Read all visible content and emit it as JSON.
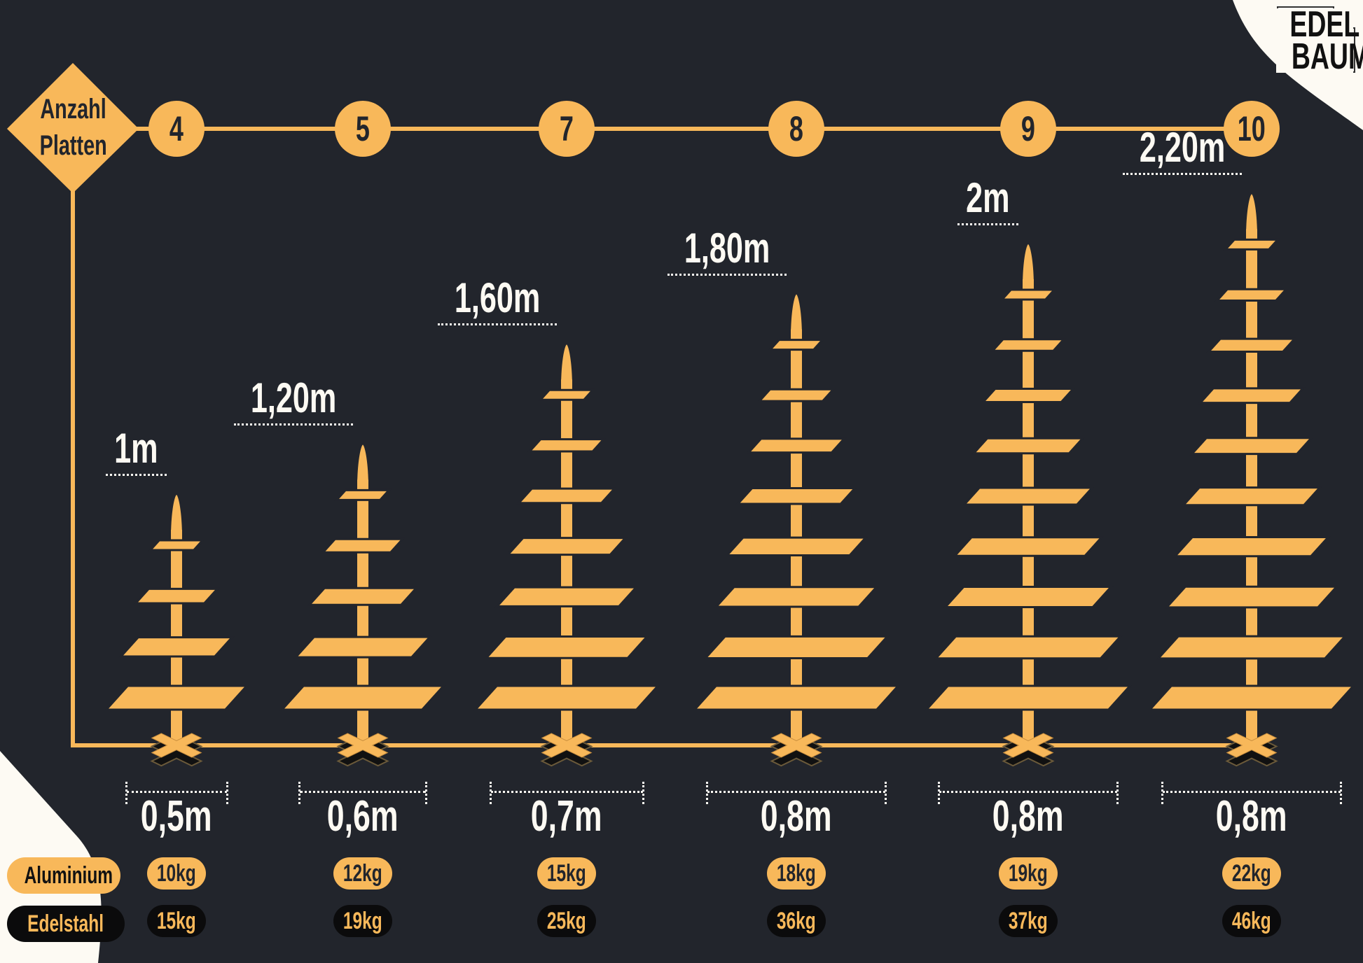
{
  "colors": {
    "background": "#22252c",
    "accent": "#f8b85a",
    "cream": "#fdfaf3",
    "dark_pill": "#0b0b0c"
  },
  "logo": {
    "line1": "EDEL",
    "line2": "BAUM"
  },
  "axis_label": {
    "line1": "Anzahl",
    "line2": "Platten"
  },
  "legend": {
    "aluminium": "Aluminium",
    "edelstahl": "Edelstahl"
  },
  "columns": [
    {
      "plates": "4",
      "height": "1m",
      "height_m": 1.0,
      "base": "0,5m",
      "base_m": 0.5,
      "aluminium": "10kg",
      "edelstahl": "15kg"
    },
    {
      "plates": "5",
      "height": "1,20m",
      "height_m": 1.2,
      "base": "0,6m",
      "base_m": 0.6,
      "aluminium": "12kg",
      "edelstahl": "19kg"
    },
    {
      "plates": "7",
      "height": "1,60m",
      "height_m": 1.6,
      "base": "0,7m",
      "base_m": 0.7,
      "aluminium": "15kg",
      "edelstahl": "25kg"
    },
    {
      "plates": "8",
      "height": "1,80m",
      "height_m": 1.8,
      "base": "0,8m",
      "base_m": 0.8,
      "aluminium": "18kg",
      "edelstahl": "36kg"
    },
    {
      "plates": "9",
      "height": "2m",
      "height_m": 2.0,
      "base": "0,8m",
      "base_m": 0.8,
      "aluminium": "19kg",
      "edelstahl": "37kg"
    },
    {
      "plates": "10",
      "height": "2,20m",
      "height_m": 2.2,
      "base": "0,8m",
      "base_m": 0.8,
      "aluminium": "22kg",
      "edelstahl": "46kg"
    }
  ]
}
